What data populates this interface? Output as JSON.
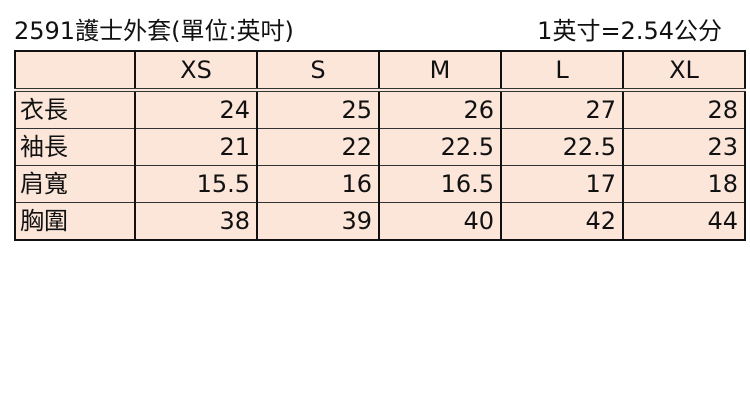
{
  "title": "2591護士外套(單位:英吋)",
  "conversion": "1英寸=2.54公分",
  "table": {
    "headers": [
      "",
      "XS",
      "S",
      "M",
      "L",
      "XL"
    ],
    "rows": [
      {
        "label": "衣長",
        "values": [
          "24",
          "25",
          "26",
          "27",
          "28"
        ]
      },
      {
        "label": "袖長",
        "values": [
          "21",
          "22",
          "22.5",
          "22.5",
          "23"
        ]
      },
      {
        "label": "肩寬",
        "values": [
          "15.5",
          "16",
          "16.5",
          "17",
          "18"
        ]
      },
      {
        "label": "胸圍",
        "values": [
          "38",
          "39",
          "40",
          "42",
          "44"
        ]
      }
    ]
  },
  "colors": {
    "cell_background": "#fce6da",
    "border": "#111111"
  }
}
